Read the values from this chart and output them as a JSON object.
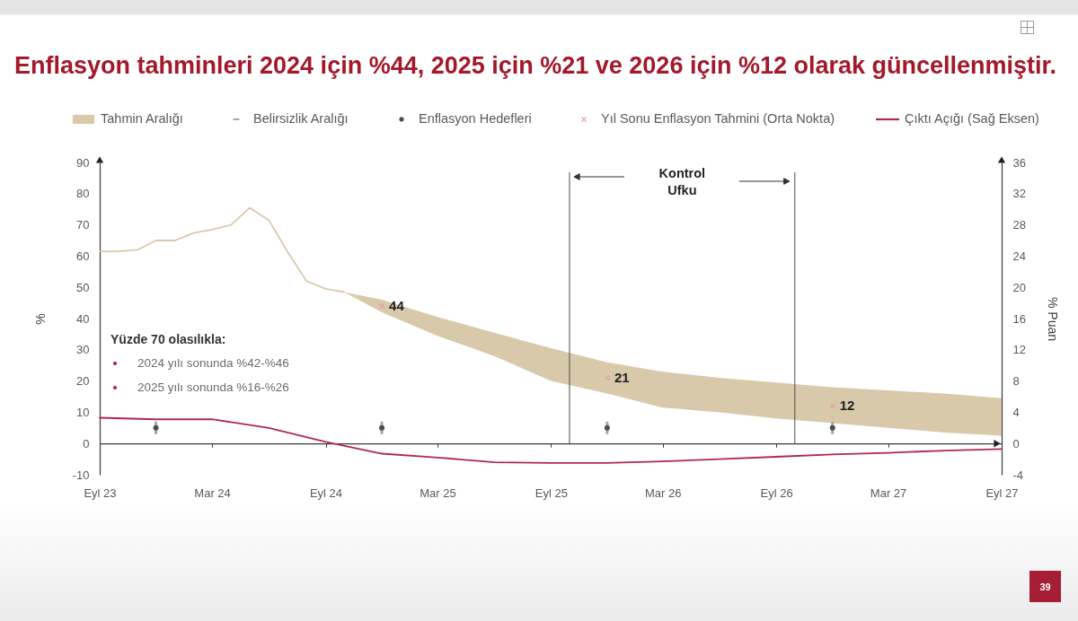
{
  "chart_data": {
    "type": "line",
    "title": "Enflasyon tahminleri 2024 için %44, 2025 için %21 ve 2026 için %12 olarak güncellenmiştir.",
    "ylabel": "%",
    "y2label": "% Puan",
    "xlim": [
      "2023-09",
      "2027-09"
    ],
    "xticks": [
      {
        "value": "2023-09",
        "label": "Eyl 23"
      },
      {
        "value": "2024-03",
        "label": "Mar 24"
      },
      {
        "value": "2024-09",
        "label": "Eyl 24"
      },
      {
        "value": "2025-03",
        "label": "Mar 25"
      },
      {
        "value": "2025-09",
        "label": "Eyl 25"
      },
      {
        "value": "2026-03",
        "label": "Mar 26"
      },
      {
        "value": "2026-09",
        "label": "Eyl 26"
      },
      {
        "value": "2027-03",
        "label": "Mar 27"
      },
      {
        "value": "2027-09",
        "label": "Eyl 27"
      }
    ],
    "ylim": [
      -10,
      90
    ],
    "yticks": [
      -10,
      0,
      10,
      20,
      30,
      40,
      50,
      60,
      70,
      80,
      90
    ],
    "y2lim": [
      -4,
      36
    ],
    "y2ticks": [
      -4,
      0,
      4,
      8,
      12,
      16,
      20,
      24,
      28,
      32,
      36
    ],
    "series": [
      {
        "name": "Tahmin Aralığı",
        "color": "#d8c9ab",
        "x": [
          "2023-09",
          "2023-10",
          "2023-11",
          "2023-12",
          "2024-01",
          "2024-02",
          "2024-03",
          "2024-04",
          "2024-05",
          "2024-06",
          "2024-07",
          "2024-08",
          "2024-09",
          "2024-10",
          "2024-12",
          "2025-03",
          "2025-06",
          "2025-09",
          "2025-12",
          "2026-03",
          "2026-06",
          "2026-09",
          "2026-12",
          "2027-03",
          "2027-06",
          "2027-09"
        ],
        "values": [
          61.5,
          61.5,
          62,
          65,
          65,
          67.5,
          68.5,
          70,
          75.5,
          71.5,
          61.5,
          52,
          49.5,
          48.5,
          null,
          null,
          null,
          null,
          null,
          null,
          null,
          null,
          null,
          null,
          null,
          null
        ],
        "lower": [
          null,
          null,
          null,
          null,
          null,
          null,
          null,
          null,
          null,
          null,
          null,
          null,
          null,
          48.5,
          42,
          34.5,
          28,
          20,
          16,
          11.5,
          10,
          8,
          6.5,
          5,
          3.5,
          2.5
        ],
        "upper": [
          null,
          null,
          null,
          null,
          null,
          null,
          null,
          null,
          null,
          null,
          null,
          null,
          null,
          48.5,
          46,
          40.5,
          35.5,
          30.5,
          26,
          23,
          21,
          19.5,
          18,
          17,
          16,
          14.5
        ]
      },
      {
        "name": "Belirsizlik Aralığı",
        "type": "bar",
        "color": "#a6a6a6",
        "x": [
          "2023-12",
          "2024-12",
          "2025-12",
          "2026-12"
        ],
        "base": [
          3,
          3,
          3,
          3
        ],
        "values": [
          4,
          4,
          4,
          4
        ]
      },
      {
        "name": "Enflasyon Hedefleri",
        "type": "scatter",
        "marker": "circle",
        "color": "#4d4d4d",
        "x": [
          "2023-12",
          "2024-12",
          "2025-12",
          "2026-12"
        ],
        "values": [
          5,
          5,
          5,
          5
        ]
      },
      {
        "name": "Yıl Sonu Enflasyon Tahmini (Orta Nokta)",
        "type": "scatter",
        "marker": "cross",
        "color": "#e8a0a0",
        "x": [
          "2024-12",
          "2025-12",
          "2026-12"
        ],
        "values": [
          44,
          21,
          12
        ],
        "value_labels": [
          "44",
          "21",
          "12"
        ]
      },
      {
        "name": "Çıktı Açığı (Sağ Eksen)",
        "axis": "y2",
        "color": "#b0284a",
        "x": [
          "2023-09",
          "2023-12",
          "2024-03",
          "2024-06",
          "2024-09",
          "2024-12",
          "2025-03",
          "2025-06",
          "2025-09",
          "2025-12",
          "2026-03",
          "2026-06",
          "2026-09",
          "2026-12",
          "2027-03",
          "2027-06",
          "2027-09"
        ],
        "values": [
          3.3,
          3.1,
          3.1,
          2.0,
          0.2,
          -1.3,
          -1.8,
          -2.4,
          -2.5,
          -2.5,
          -2.3,
          -2.0,
          -1.7,
          -1.4,
          -1.2,
          -0.9,
          -0.7
        ]
      }
    ],
    "ref_lines": [
      {
        "axis": "x",
        "value": "2025-10"
      },
      {
        "axis": "x",
        "value": "2026-10"
      }
    ],
    "annotations": [
      "Kontrol Ufku",
      "Yüzde 70 olasılıkla:",
      "2024 yılı sonunda %42-%46",
      "2025 yılı sonunda %16-%26",
      "39"
    ],
    "legend": "top"
  }
}
